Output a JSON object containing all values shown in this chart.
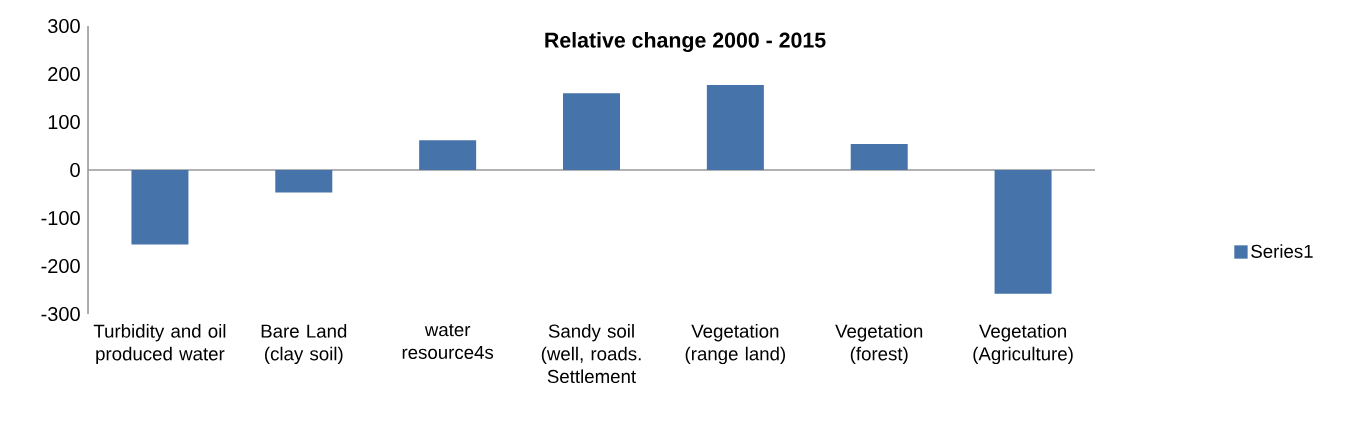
{
  "chart_data": {
    "type": "bar",
    "title": "Relative change 2000 - 2015",
    "categories": [
      "Turbidity and oil produced water",
      "Bare Land (clay soil)",
      "water resource4s",
      "Sandy soil (well, roads. Settlement",
      "Vegetation (range land)",
      "Vegetation (forest)",
      "Vegetation (Agriculture)"
    ],
    "series": [
      {
        "name": "Series1",
        "color": "#4673a9",
        "values": [
          -155,
          -47,
          62,
          160,
          177,
          54,
          -258
        ]
      }
    ],
    "ylim": [
      -300,
      300
    ],
    "yticks": [
      -300,
      -200,
      -100,
      0,
      100,
      200,
      300
    ],
    "legend": "right"
  }
}
